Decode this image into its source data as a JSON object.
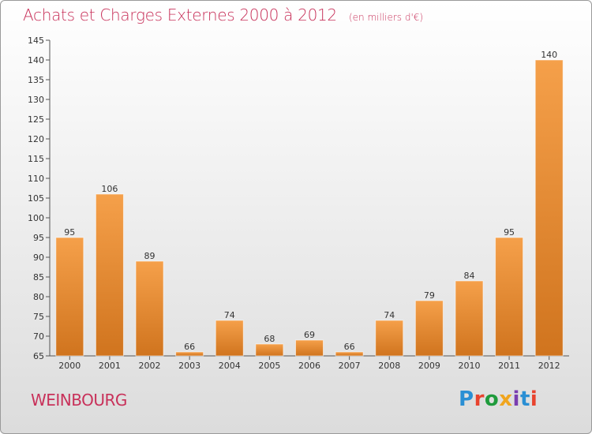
{
  "header": {
    "title": "Achats et Charges Externes 2000 à 2012",
    "unit": "(en milliers d'€)"
  },
  "footer": {
    "commune": "WEINBOURG",
    "brand": "Proxiti"
  },
  "colors": {
    "accent": "#c8315a",
    "bar_light": "#f5a04a",
    "bar_dark": "#d0741e"
  },
  "chart_data": {
    "type": "bar",
    "categories": [
      "2000",
      "2001",
      "2002",
      "2003",
      "2004",
      "2005",
      "2006",
      "2007",
      "2008",
      "2009",
      "2010",
      "2011",
      "2012"
    ],
    "values": [
      95,
      106,
      89,
      66,
      74,
      68,
      69,
      66,
      74,
      79,
      84,
      95,
      140
    ],
    "title": "Achats et Charges Externes 2000 à 2012",
    "subtitle": "(en milliers d'€)",
    "xlabel": "",
    "ylabel": "",
    "ylim": [
      65,
      145
    ],
    "yticks": [
      65,
      70,
      75,
      80,
      85,
      90,
      95,
      100,
      105,
      110,
      115,
      120,
      125,
      130,
      135,
      140,
      145
    ],
    "grid": false,
    "legend": "none"
  }
}
